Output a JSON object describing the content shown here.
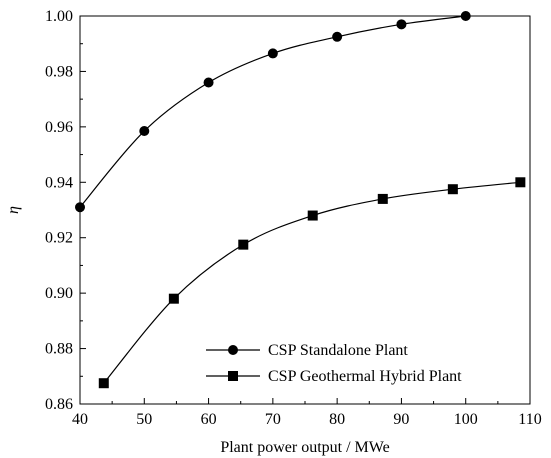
{
  "chart_data": {
    "type": "line",
    "title": "",
    "xlabel": "Plant power output / MWe",
    "ylabel": "η",
    "xlim": [
      40,
      110
    ],
    "ylim": [
      0.86,
      1.0
    ],
    "xticks": [
      40,
      50,
      60,
      70,
      80,
      90,
      100,
      110
    ],
    "yticks": [
      0.86,
      0.88,
      0.9,
      0.92,
      0.94,
      0.96,
      0.98,
      1.0
    ],
    "xtick_labels": [
      "40",
      "50",
      "60",
      "70",
      "80",
      "90",
      "100",
      "110"
    ],
    "ytick_labels": [
      "0.86",
      "0.88",
      "0.90",
      "0.92",
      "0.94",
      "0.96",
      "0.98",
      "1.00"
    ],
    "grid": false,
    "legend_position": "bottom-right",
    "series": [
      {
        "name": "CSP Standalone Plant",
        "marker": "circle",
        "color": "#000000",
        "x": [
          40,
          50,
          60,
          70,
          80,
          90,
          100
        ],
        "y": [
          0.931,
          0.9585,
          0.976,
          0.9865,
          0.9925,
          0.997,
          1.0
        ]
      },
      {
        "name": "CSP Geothermal Hybrid Plant",
        "marker": "square",
        "color": "#000000",
        "x": [
          43.7,
          54.6,
          65.4,
          76.2,
          87.1,
          98,
          108.5
        ],
        "y": [
          0.8675,
          0.898,
          0.9175,
          0.928,
          0.934,
          0.9375,
          0.94
        ]
      }
    ]
  }
}
